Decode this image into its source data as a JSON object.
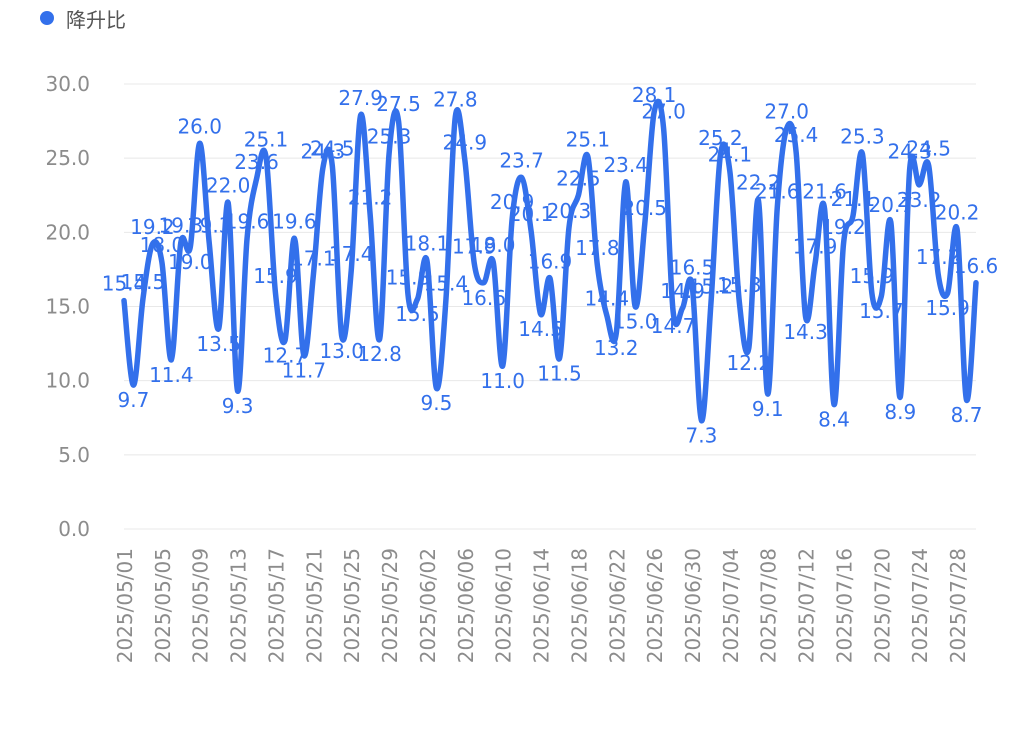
{
  "legend": {
    "label": "降升比"
  },
  "colors": {
    "series": "#3370EB",
    "axis_text": "#8C8C8C",
    "grid": "#E8E8E8"
  },
  "chart_data": {
    "type": "line",
    "smooth": true,
    "grid": true,
    "legend_position": "top-left",
    "ylim": [
      0,
      30
    ],
    "yticks": [
      "0.0",
      "5.0",
      "10.0",
      "15.0",
      "20.0",
      "25.0",
      "30.0"
    ],
    "xtick_labels": [
      "2025/05/01",
      "2025/05/05",
      "2025/05/09",
      "2025/05/13",
      "2025/05/17",
      "2025/05/21",
      "2025/05/25",
      "2025/05/29",
      "2025/06/02",
      "2025/06/06",
      "2025/06/10",
      "2025/06/14",
      "2025/06/18",
      "2025/06/22",
      "2025/06/26",
      "2025/06/30",
      "2025/07/04",
      "2025/07/08",
      "2025/07/12",
      "2025/07/16",
      "2025/07/20",
      "2025/07/24",
      "2025/07/28"
    ],
    "series": [
      {
        "name": "降升比",
        "values": [
          15.4,
          9.7,
          15.5,
          19.2,
          18.0,
          11.4,
          19.3,
          19.0,
          26.0,
          19.3,
          13.5,
          22.0,
          9.3,
          19.6,
          23.6,
          25.1,
          15.9,
          12.7,
          19.6,
          11.7,
          17.1,
          24.3,
          24.5,
          13.0,
          17.4,
          27.9,
          21.2,
          12.8,
          25.3,
          27.5,
          15.8,
          15.5,
          18.1,
          9.5,
          15.4,
          27.8,
          24.9,
          17.9,
          16.6,
          18.0,
          11.0,
          20.9,
          23.7,
          20.1,
          14.5,
          16.9,
          11.5,
          20.3,
          22.5,
          25.1,
          17.8,
          14.4,
          13.2,
          23.4,
          15.0,
          20.5,
          28.1,
          27.0,
          14.7,
          14.9,
          16.5,
          7.3,
          15.2,
          25.2,
          24.1,
          15.3,
          12.2,
          22.2,
          9.1,
          21.6,
          27.0,
          25.4,
          14.3,
          17.9,
          21.6,
          8.4,
          19.2,
          21.1,
          25.3,
          15.9,
          15.7,
          20.7,
          8.9,
          24.3,
          23.2,
          24.5,
          17.2,
          15.9,
          20.2,
          8.7,
          16.6
        ]
      }
    ],
    "data_labels": [
      "15.4",
      "9.7",
      "15.5",
      "19.2",
      "18.0",
      "11.4",
      "19.3",
      "19.0",
      "26.0",
      "19.3",
      "13.5",
      "22.0",
      "9.3",
      "19.6",
      "23.6",
      "25.1",
      "15.9",
      "12.7",
      "19.6",
      "11.7",
      "17.1",
      "24.3",
      "24.5",
      "13.0",
      "17.4",
      "27.9",
      "21.2",
      "12.8",
      "25.3",
      "27.5",
      "15.8",
      "15.5",
      "18.1",
      "9.5",
      "15.4",
      "27.8",
      "24.9",
      "17.9",
      "16.6",
      "18.0",
      "11.0",
      "20.9",
      "23.7",
      "20.1",
      "14.5",
      "16.9",
      "11.5",
      "20.3",
      "22.5",
      "25.1",
      "17.8",
      "14.4",
      "13.2",
      "23.4",
      "15.0",
      "20.5",
      "28.1",
      "27.0",
      "14.7",
      "14.9",
      "16.5",
      "7.3",
      "15.2",
      "25.2",
      "24.1",
      "15.3",
      "12.2",
      "22.2",
      "9.1",
      "21.6",
      "27.0",
      "25.4",
      "14.3",
      "17.9",
      "21.6",
      "8.4",
      "19.2",
      "21.1",
      "25.3",
      "15.9",
      "15.7",
      "20.7",
      "8.9",
      "24.3",
      "23.2",
      "24.5",
      "17.2",
      "15.9",
      "20.2",
      "8.7",
      "16.6"
    ]
  }
}
